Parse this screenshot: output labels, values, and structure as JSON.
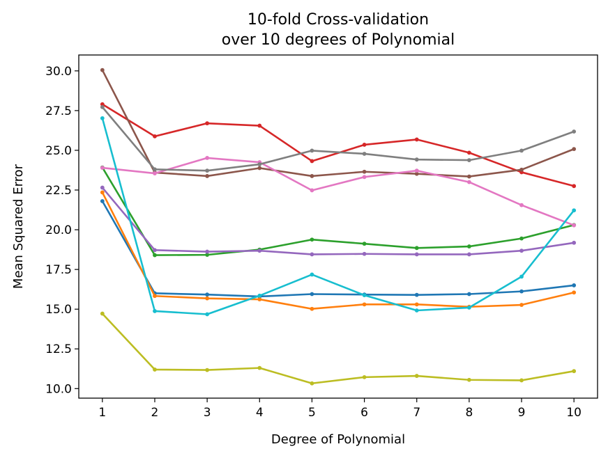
{
  "chart_data": {
    "type": "line",
    "title_line1": "10-fold Cross-validation",
    "title_line2": "over 10 degrees of Polynomial",
    "xlabel": "Degree of Polynomial",
    "ylabel": "Mean Squared Error",
    "x": [
      1,
      2,
      3,
      4,
      5,
      6,
      7,
      8,
      9,
      10
    ],
    "xlim": [
      0.55,
      10.45
    ],
    "ylim": [
      9.4,
      31.0
    ],
    "xticks": [
      "1",
      "2",
      "3",
      "4",
      "5",
      "6",
      "7",
      "8",
      "9",
      "10"
    ],
    "yticks": [
      10.0,
      12.5,
      15.0,
      17.5,
      20.0,
      22.5,
      25.0,
      27.5,
      30.0
    ],
    "ytick_labels": [
      "10.0",
      "12.5",
      "15.0",
      "17.5",
      "20.0",
      "22.5",
      "25.0",
      "27.5",
      "30.0"
    ],
    "grid": false,
    "series": [
      {
        "color": "#1f77b4",
        "values": [
          21.8,
          16.0,
          15.92,
          15.8,
          15.95,
          15.92,
          15.9,
          15.95,
          16.12,
          16.5
        ]
      },
      {
        "color": "#ff7f0e",
        "values": [
          22.35,
          15.83,
          15.68,
          15.62,
          15.02,
          15.3,
          15.3,
          15.15,
          15.27,
          16.05
        ]
      },
      {
        "color": "#2ca02c",
        "values": [
          23.92,
          18.4,
          18.42,
          18.75,
          19.38,
          19.12,
          18.85,
          18.95,
          19.45,
          20.3
        ]
      },
      {
        "color": "#d62728",
        "values": [
          27.9,
          25.88,
          26.7,
          26.55,
          24.32,
          25.35,
          25.68,
          24.85,
          23.62,
          22.75
        ]
      },
      {
        "color": "#9467bd",
        "values": [
          22.65,
          18.72,
          18.62,
          18.68,
          18.45,
          18.48,
          18.45,
          18.45,
          18.68,
          19.18
        ]
      },
      {
        "color": "#8c564b",
        "values": [
          30.05,
          23.6,
          23.38,
          23.88,
          23.38,
          23.65,
          23.52,
          23.35,
          23.78,
          25.08
        ]
      },
      {
        "color": "#e377c2",
        "values": [
          23.9,
          23.55,
          24.52,
          24.25,
          22.48,
          23.32,
          23.72,
          23.0,
          21.55,
          20.28
        ]
      },
      {
        "color": "#7f7f7f",
        "values": [
          27.72,
          23.8,
          23.72,
          24.12,
          24.98,
          24.78,
          24.42,
          24.38,
          24.98,
          26.18
        ]
      },
      {
        "color": "#bcbd22",
        "values": [
          14.72,
          11.2,
          11.17,
          11.3,
          10.33,
          10.72,
          10.8,
          10.55,
          10.52,
          11.1
        ]
      },
      {
        "color": "#17becf",
        "values": [
          27.02,
          14.88,
          14.68,
          15.85,
          17.18,
          15.88,
          14.92,
          15.1,
          17.05,
          21.22
        ]
      }
    ]
  }
}
